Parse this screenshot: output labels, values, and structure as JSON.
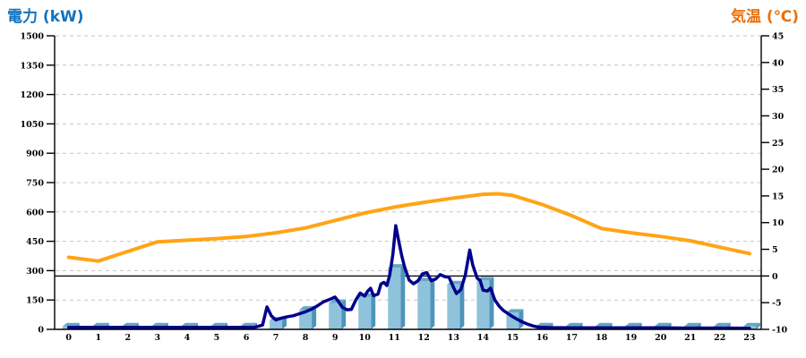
{
  "chart_data": {
    "type": "combo-bar-line",
    "title": "",
    "legend": "none",
    "grid": {
      "horizontal_dashed": true,
      "color": "#C3C3C3"
    },
    "x_axis": {
      "unit": "hour",
      "labels": [
        "0",
        "1",
        "2",
        "3",
        "4",
        "5",
        "6",
        "7",
        "8",
        "9",
        "10",
        "11",
        "12",
        "13",
        "14",
        "15",
        "16",
        "17",
        "18",
        "19",
        "20",
        "21",
        "22",
        "23"
      ]
    },
    "left_axis": {
      "title": "電力 (kW)",
      "min": 0,
      "max": 1500,
      "tick_step": 150,
      "ticks": [
        1500,
        1350,
        1200,
        1050,
        900,
        750,
        600,
        450,
        300,
        150,
        0
      ]
    },
    "right_axis": {
      "title": "気温 (℃)",
      "min": -10,
      "max": 45,
      "tick_step": 5,
      "ticks": [
        45,
        40,
        35,
        30,
        25,
        20,
        15,
        10,
        5,
        0,
        -5,
        -10
      ],
      "zero_solid_line": true
    },
    "series": [
      {
        "name": "power-bars",
        "type": "bar",
        "axis": "left",
        "values_kw": [
          15,
          15,
          15,
          15,
          15,
          15,
          15,
          45,
          100,
          135,
          165,
          315,
          245,
          230,
          250,
          85,
          15,
          15,
          15,
          15,
          15,
          15,
          15,
          15
        ]
      },
      {
        "name": "power-line",
        "type": "line",
        "axis": "left",
        "points_hour_kw": [
          [
            0,
            10
          ],
          [
            0.5,
            10
          ],
          [
            1,
            10
          ],
          [
            1.5,
            10
          ],
          [
            2,
            10
          ],
          [
            2.5,
            10
          ],
          [
            3,
            10
          ],
          [
            3.5,
            10
          ],
          [
            4,
            10
          ],
          [
            4.5,
            10
          ],
          [
            5,
            10
          ],
          [
            5.5,
            10
          ],
          [
            6,
            10
          ],
          [
            6.3,
            11
          ],
          [
            6.55,
            22
          ],
          [
            6.7,
            115
          ],
          [
            6.85,
            68
          ],
          [
            7,
            48
          ],
          [
            7.2,
            58
          ],
          [
            7.4,
            65
          ],
          [
            7.6,
            70
          ],
          [
            7.8,
            80
          ],
          [
            8,
            90
          ],
          [
            8.2,
            103
          ],
          [
            8.4,
            120
          ],
          [
            8.6,
            140
          ],
          [
            8.8,
            152
          ],
          [
            9,
            165
          ],
          [
            9.1,
            145
          ],
          [
            9.25,
            112
          ],
          [
            9.4,
            100
          ],
          [
            9.55,
            102
          ],
          [
            9.7,
            150
          ],
          [
            9.85,
            185
          ],
          [
            10,
            170
          ],
          [
            10.1,
            195
          ],
          [
            10.2,
            210
          ],
          [
            10.3,
            172
          ],
          [
            10.45,
            180
          ],
          [
            10.55,
            232
          ],
          [
            10.65,
            240
          ],
          [
            10.75,
            224
          ],
          [
            10.85,
            280
          ],
          [
            10.95,
            380
          ],
          [
            11.05,
            530
          ],
          [
            11.15,
            452
          ],
          [
            11.25,
            378
          ],
          [
            11.35,
            318
          ],
          [
            11.5,
            252
          ],
          [
            11.65,
            233
          ],
          [
            11.8,
            248
          ],
          [
            11.95,
            283
          ],
          [
            12.1,
            290
          ],
          [
            12.25,
            248
          ],
          [
            12.4,
            257
          ],
          [
            12.55,
            280
          ],
          [
            12.7,
            270
          ],
          [
            12.85,
            266
          ],
          [
            13,
            215
          ],
          [
            13.1,
            183
          ],
          [
            13.25,
            203
          ],
          [
            13.4,
            278
          ],
          [
            13.55,
            405
          ],
          [
            13.65,
            330
          ],
          [
            13.8,
            262
          ],
          [
            13.9,
            250
          ],
          [
            14,
            200
          ],
          [
            14.15,
            196
          ],
          [
            14.25,
            211
          ],
          [
            14.4,
            150
          ],
          [
            14.55,
            117
          ],
          [
            14.7,
            95
          ],
          [
            14.85,
            80
          ],
          [
            15,
            65
          ],
          [
            15.15,
            52
          ],
          [
            15.3,
            40
          ],
          [
            15.5,
            27
          ],
          [
            15.7,
            17
          ],
          [
            15.9,
            11
          ],
          [
            16.25,
            9
          ],
          [
            17,
            8
          ],
          [
            18,
            8
          ],
          [
            19,
            8
          ],
          [
            20,
            8
          ],
          [
            21,
            7
          ],
          [
            22,
            7
          ],
          [
            23,
            6
          ]
        ]
      },
      {
        "name": "temperature-line",
        "type": "line",
        "axis": "right",
        "points_hour_c": [
          [
            0,
            3.5
          ],
          [
            1,
            2.8
          ],
          [
            2,
            4.6
          ],
          [
            3,
            6.4
          ],
          [
            4,
            6.7
          ],
          [
            5,
            7.0
          ],
          [
            6,
            7.4
          ],
          [
            7,
            8.1
          ],
          [
            8,
            9.0
          ],
          [
            9,
            10.4
          ],
          [
            10,
            11.8
          ],
          [
            11,
            12.9
          ],
          [
            12,
            13.8
          ],
          [
            13,
            14.6
          ],
          [
            14,
            15.3
          ],
          [
            14.5,
            15.4
          ],
          [
            15,
            15.1
          ],
          [
            16,
            13.4
          ],
          [
            17,
            11.3
          ],
          [
            18,
            8.9
          ],
          [
            19,
            8.1
          ],
          [
            20,
            7.4
          ],
          [
            21,
            6.6
          ],
          [
            22,
            5.4
          ],
          [
            23,
            4.2
          ]
        ]
      }
    ]
  },
  "colors": {
    "power_title": "#1272BF",
    "temp_title": "#E8700C",
    "bar_front": "#8FC3DC",
    "bar_side": "#4E94BA",
    "bar_top": "#65A8C8",
    "power_line": "#00008B",
    "temp_line": "#FFA414",
    "grid": "#C3C3C3",
    "axis": "#000000"
  }
}
